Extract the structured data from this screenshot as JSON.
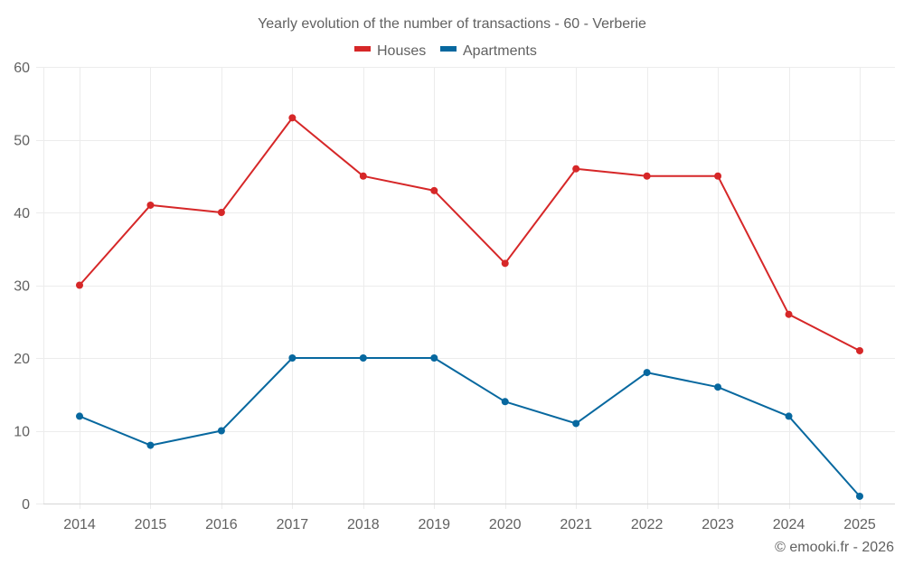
{
  "chart_data": {
    "type": "line",
    "title": "Yearly evolution of the number of transactions - 60 - Verberie",
    "xlabel": "",
    "ylabel": "",
    "categories": [
      "2014",
      "2015",
      "2016",
      "2017",
      "2018",
      "2019",
      "2020",
      "2021",
      "2022",
      "2023",
      "2024",
      "2025"
    ],
    "series": [
      {
        "name": "Houses",
        "color": "#d62728",
        "values": [
          30,
          41,
          40,
          53,
          45,
          43,
          33,
          46,
          45,
          45,
          26,
          21
        ]
      },
      {
        "name": "Apartments",
        "color": "#07689f",
        "values": [
          12,
          8,
          10,
          20,
          20,
          20,
          14,
          11,
          18,
          16,
          12,
          1
        ]
      }
    ],
    "ylim": [
      0,
      60
    ],
    "yticks": [
      0,
      10,
      20,
      30,
      40,
      50,
      60
    ],
    "grid": true,
    "legend": "top-center",
    "credit": "© emooki.fr - 2026"
  }
}
